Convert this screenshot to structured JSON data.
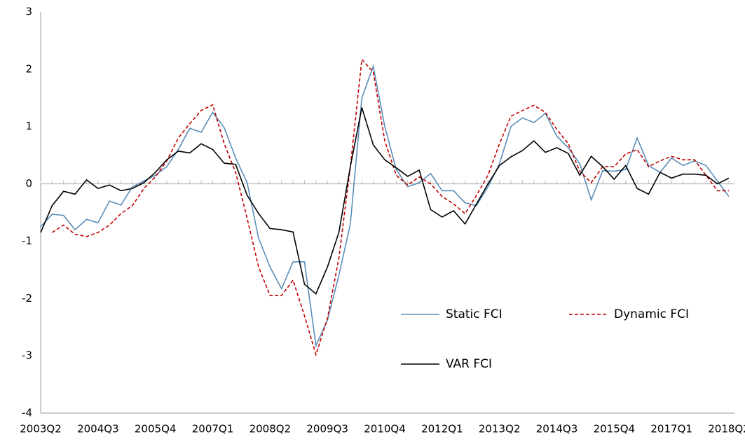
{
  "chart_data": {
    "type": "line",
    "categories": [
      "2003Q2",
      null,
      null,
      null,
      null,
      "2004Q3",
      null,
      null,
      null,
      null,
      "2005Q4",
      null,
      null,
      null,
      null,
      "2007Q1",
      null,
      null,
      null,
      null,
      "2008Q2",
      null,
      null,
      null,
      null,
      "2009Q3",
      null,
      null,
      null,
      null,
      "2010Q4",
      null,
      null,
      null,
      null,
      "2012Q1",
      null,
      null,
      null,
      null,
      "2013Q2",
      null,
      null,
      null,
      null,
      "2014Q3",
      null,
      null,
      null,
      null,
      "2015Q4",
      null,
      null,
      null,
      null,
      "2017Q1",
      null,
      null,
      null,
      null,
      "2018Q2"
    ],
    "ylim": [
      -4,
      3
    ],
    "yticks": [
      -4,
      -3,
      -2,
      -1,
      0,
      1,
      2,
      3
    ],
    "series": [
      {
        "name": "Static FCI",
        "color": "#5b8db8",
        "dash": "solid",
        "values": [
          -0.75,
          -0.53,
          -0.55,
          -0.8,
          -0.62,
          -0.68,
          -0.3,
          -0.37,
          -0.05,
          0.05,
          0.15,
          0.3,
          0.6,
          0.97,
          0.9,
          1.25,
          0.98,
          0.45,
          0.02,
          -0.95,
          -1.45,
          -1.83,
          -1.36,
          -1.36,
          -2.82,
          -2.38,
          -1.6,
          -0.7,
          1.5,
          2.05,
          1.0,
          0.25,
          -0.05,
          0.02,
          0.18,
          -0.12,
          -0.12,
          -0.33,
          -0.38,
          -0.05,
          0.35,
          1.0,
          1.15,
          1.07,
          1.23,
          0.83,
          0.63,
          0.35,
          -0.28,
          0.23,
          0.22,
          0.25,
          0.8,
          0.32,
          0.2,
          0.45,
          0.32,
          0.4,
          0.32,
          0.05,
          -0.22
        ]
      },
      {
        "name": "Dynamic FCI",
        "color": "#c00000",
        "dash": "dashed",
        "values": [
          null,
          -0.85,
          -0.72,
          -0.88,
          -0.92,
          -0.85,
          -0.72,
          -0.52,
          -0.38,
          -0.08,
          0.12,
          0.4,
          0.8,
          1.05,
          1.28,
          1.38,
          0.7,
          0.2,
          -0.6,
          -1.45,
          -1.95,
          -1.95,
          -1.68,
          -2.3,
          -2.98,
          -2.35,
          -1.3,
          0.3,
          2.17,
          1.95,
          0.75,
          0.15,
          -0.02,
          0.12,
          0.0,
          -0.22,
          -0.35,
          -0.52,
          -0.2,
          0.15,
          0.7,
          1.18,
          1.28,
          1.37,
          1.25,
          0.95,
          0.7,
          0.22,
          0.02,
          0.3,
          0.3,
          0.52,
          0.6,
          0.3,
          0.4,
          0.48,
          0.42,
          0.42,
          0.15,
          -0.12,
          -0.12
        ]
      },
      {
        "name": "VAR FCI",
        "color": "#000000",
        "dash": "solid",
        "values": [
          -0.85,
          -0.38,
          -0.13,
          -0.18,
          0.07,
          -0.08,
          -0.02,
          -0.12,
          -0.08,
          0.02,
          0.2,
          0.42,
          0.57,
          0.54,
          0.7,
          0.6,
          0.36,
          0.34,
          -0.2,
          -0.52,
          -0.78,
          -0.8,
          -0.84,
          -1.75,
          -1.92,
          -1.45,
          -0.85,
          0.3,
          1.33,
          0.68,
          0.42,
          0.28,
          0.13,
          0.24,
          -0.45,
          -0.58,
          -0.47,
          -0.7,
          -0.35,
          0.0,
          0.32,
          0.47,
          0.58,
          0.75,
          0.55,
          0.63,
          0.53,
          0.15,
          0.48,
          0.3,
          0.08,
          0.32,
          -0.08,
          -0.18,
          0.2,
          0.1,
          0.17,
          0.17,
          0.15,
          0.0,
          0.1
        ]
      }
    ]
  }
}
